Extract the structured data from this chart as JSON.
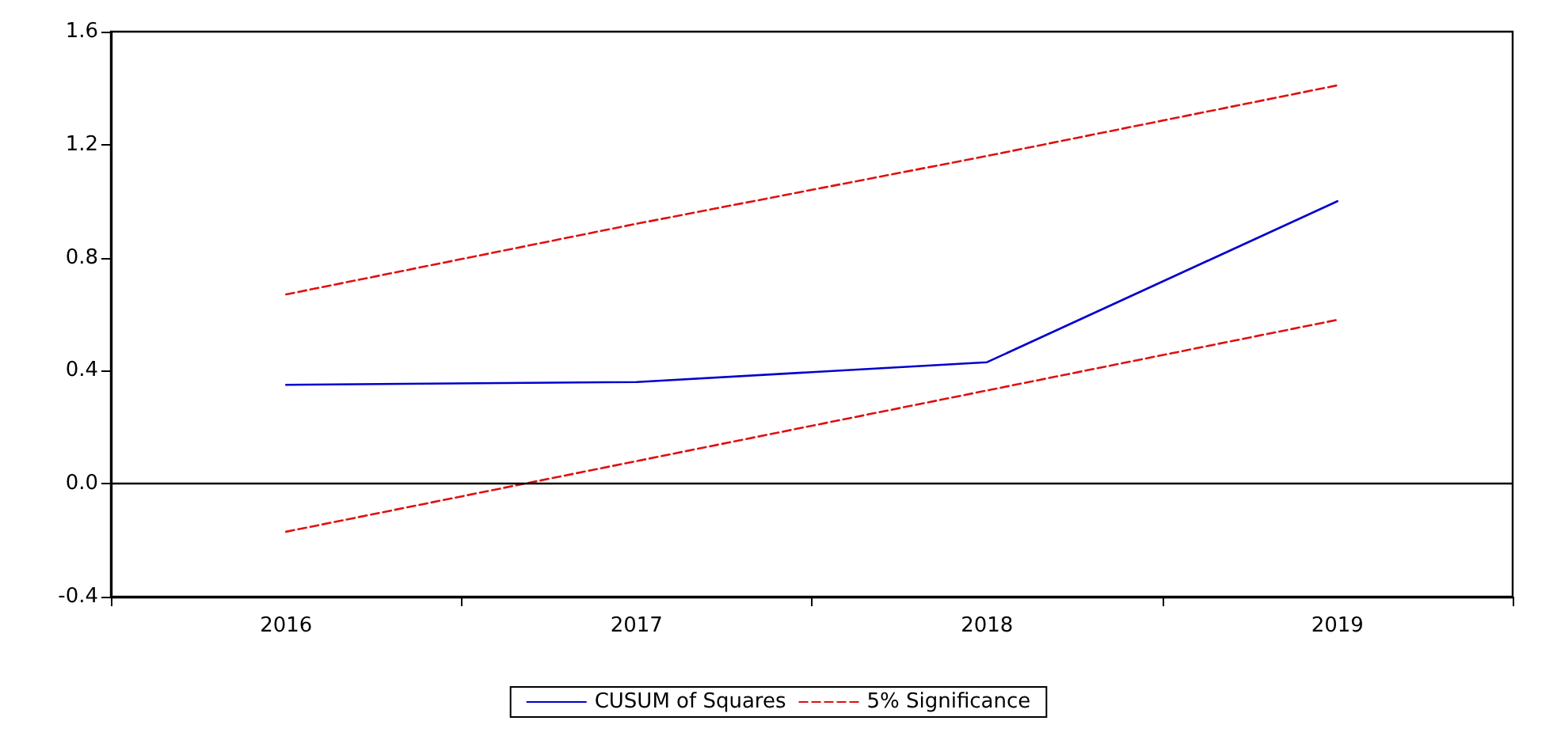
{
  "chart_data": {
    "type": "line",
    "categories": [
      "2016",
      "2017",
      "2018",
      "2019"
    ],
    "series": [
      {
        "name": "CUSUM of Squares",
        "color": "#0000cc",
        "values": [
          0.35,
          0.36,
          0.43,
          1.0
        ],
        "line_style": "solid"
      },
      {
        "name": "5% Significance",
        "color": "#e01010",
        "values": [
          0.67,
          0.92,
          1.16,
          1.41
        ],
        "line_style": "dashed"
      },
      {
        "color": "#e01010",
        "values": [
          -0.17,
          0.08,
          0.33,
          0.58
        ],
        "line_style": "dashed"
      }
    ],
    "ylim": [
      -0.4,
      1.6
    ],
    "yticks": [
      {
        "value": -0.4,
        "label": "-0.4"
      },
      {
        "value": 0,
        "label": "0.0"
      },
      {
        "value": 0.4,
        "label": "0.4"
      },
      {
        "value": 0.8,
        "label": "0.8"
      },
      {
        "value": 1.2,
        "label": "1.2"
      },
      {
        "value": 1.6,
        "label": "1.6"
      }
    ],
    "ref_lines": [
      {
        "axis": "y",
        "value": 0,
        "color": "#000000"
      }
    ],
    "grid": false,
    "legend": "bottom",
    "marker": "none"
  }
}
